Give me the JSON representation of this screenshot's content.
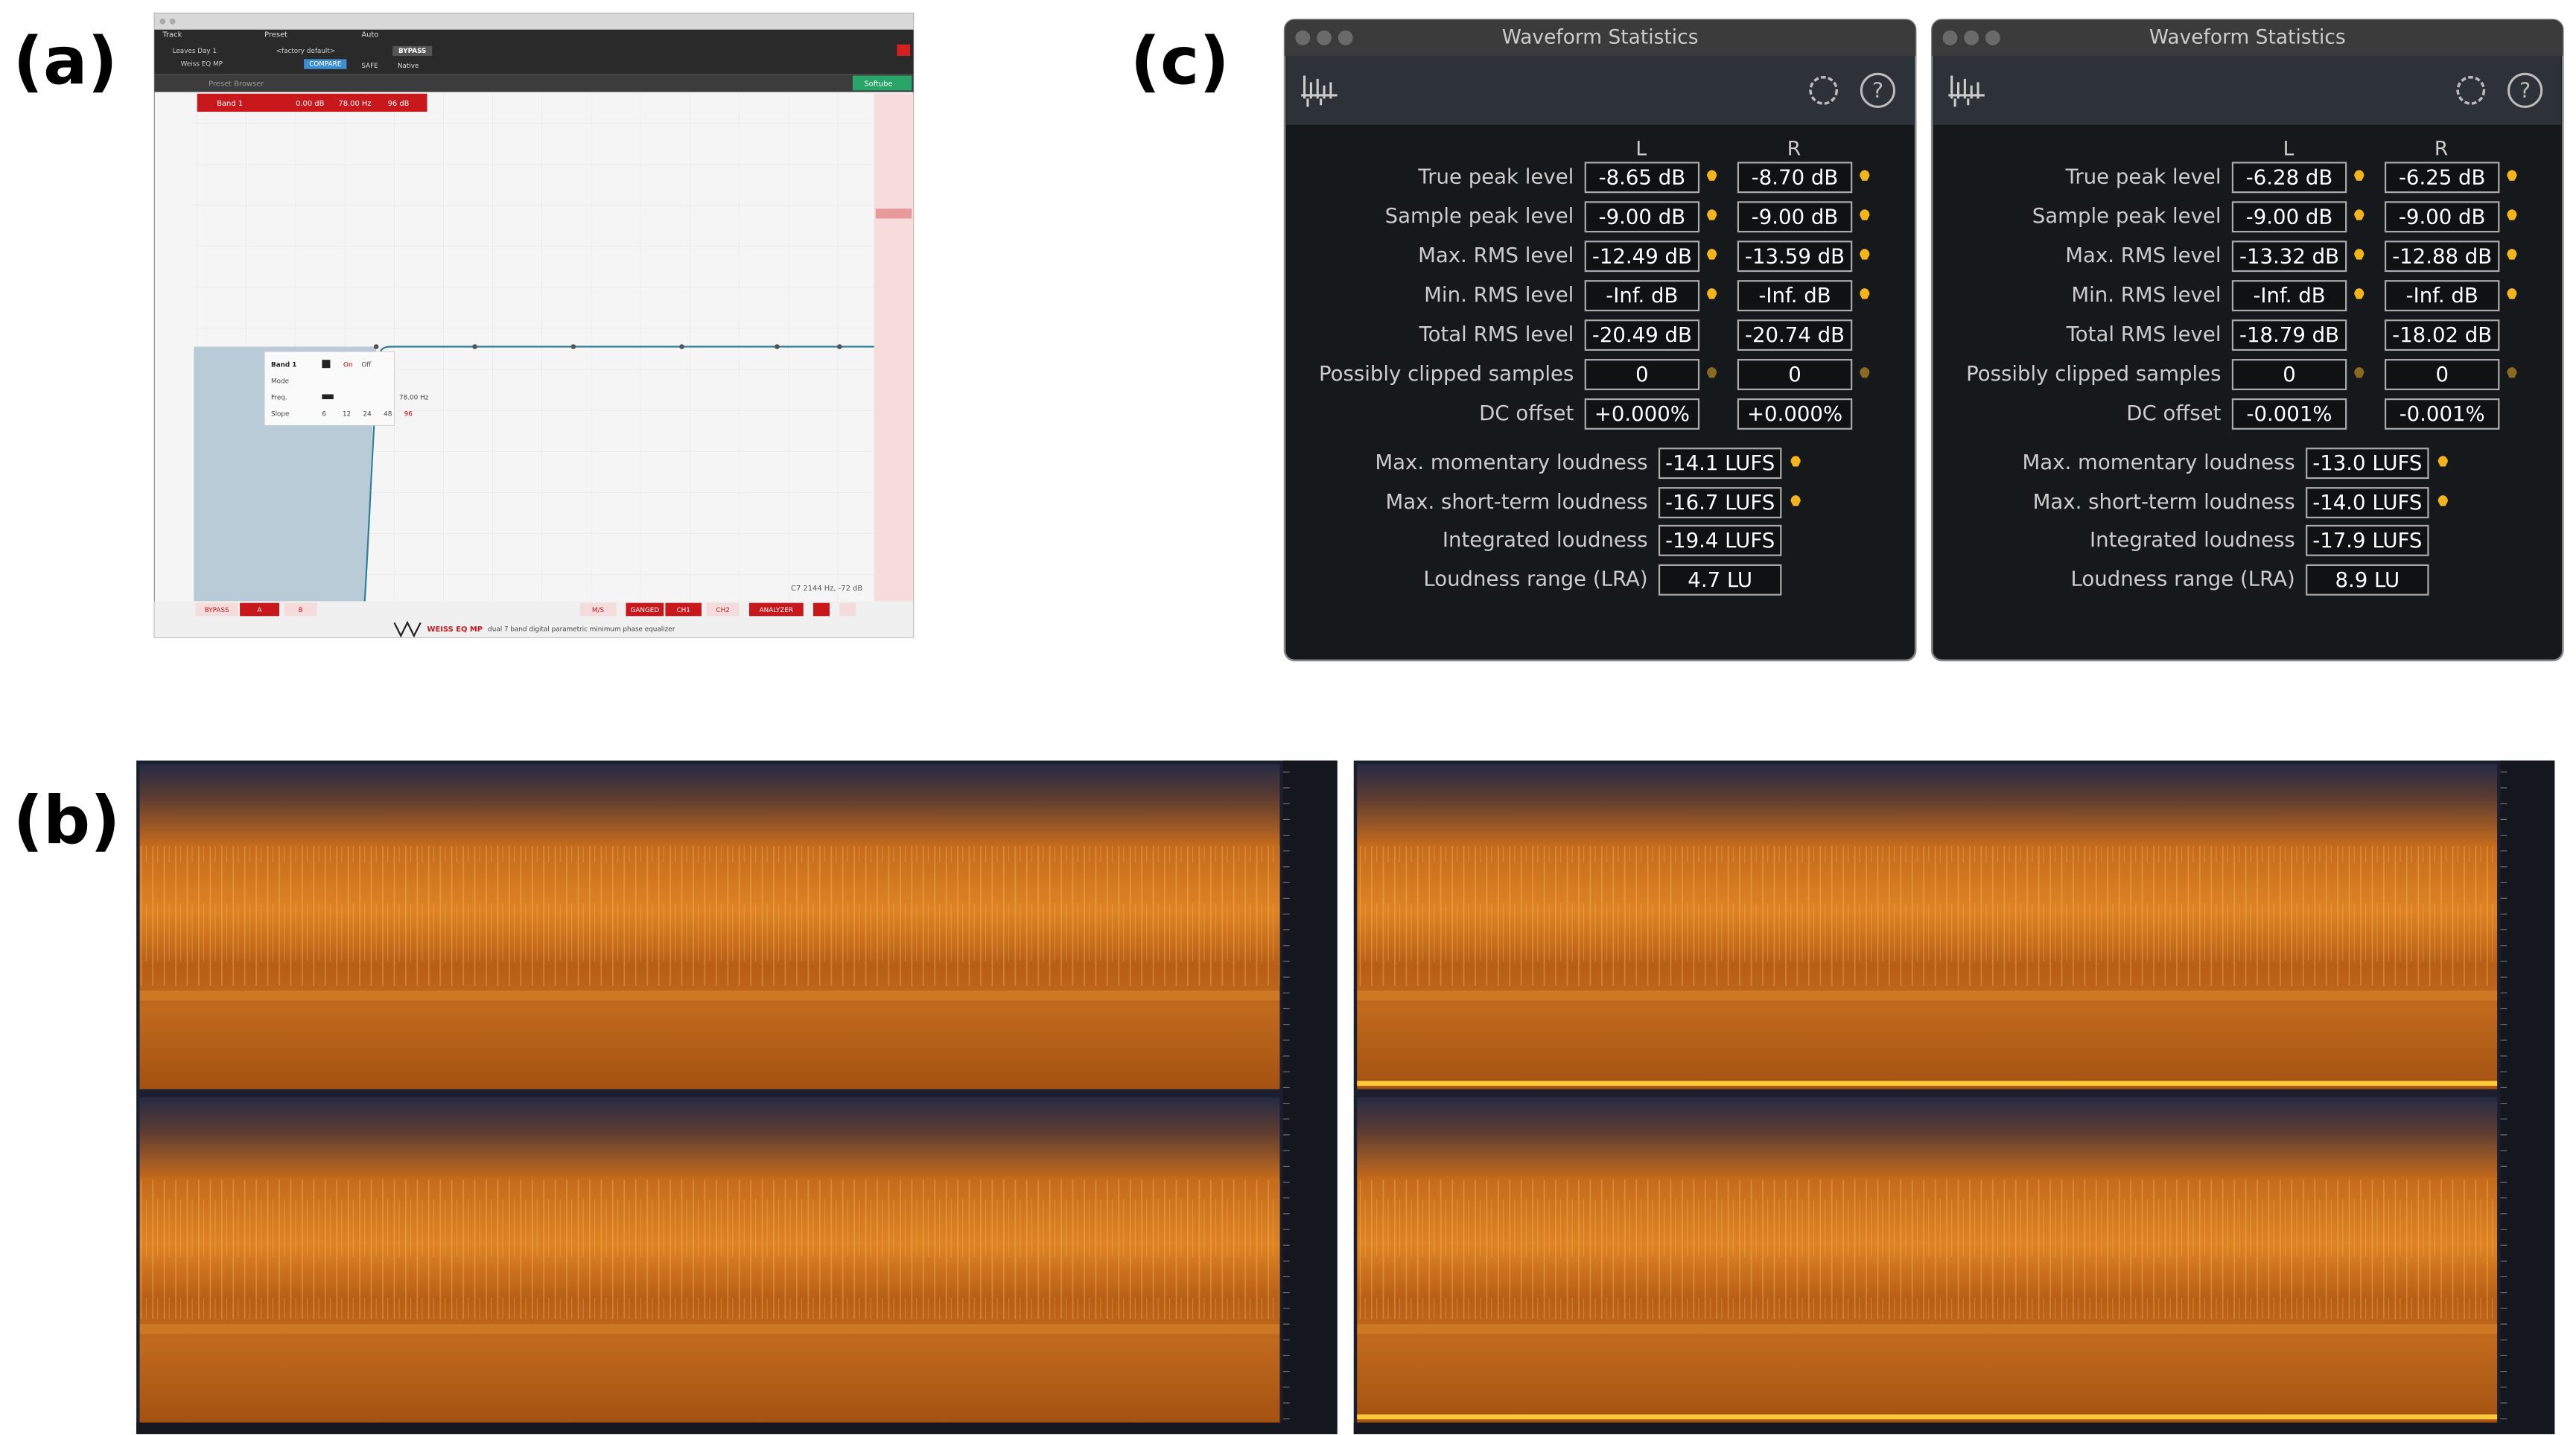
{
  "labels": {
    "a": "(a)",
    "b": "(b)",
    "c": "(c)"
  },
  "eq": {
    "track_label": "Track",
    "preset_label": "Preset",
    "auto_label": "Auto",
    "track": "Leaves Day 1",
    "plugin": "Weiss EQ MP",
    "preset": "<factory default>",
    "compare": "COMPARE",
    "bypass_top": "BYPASS",
    "safe": "SAFE",
    "native": "Native",
    "preset_browser": "Preset Browser",
    "softube": "Softube",
    "band_header": {
      "name": "Band 1",
      "gain": "0.00 dB",
      "freq": "78.00 Hz",
      "slope": "96 dB"
    },
    "popup": {
      "name": "Band 1",
      "on": "On",
      "off": "Off",
      "mode": "Mode",
      "freq_label": "Freq.",
      "freq": "78.00 Hz",
      "slope_label": "Slope",
      "slopes": [
        "6",
        "12",
        "24",
        "48",
        "96"
      ]
    },
    "cursor": "C7 2144 Hz, -72 dB",
    "footer": [
      "BYPASS",
      "A",
      "B",
      "M/S",
      "GANGED",
      "CH1",
      "CH2",
      "ANALYZER"
    ],
    "brand": "WEISS EQ MP",
    "tagline": "dual 7 band digital parametric minimum phase equalizer"
  },
  "stats": [
    {
      "title": "Waveform Statistics",
      "headers": [
        "L",
        "R"
      ],
      "rows": [
        {
          "label": "True peak level",
          "L": "-8.65 dB",
          "R": "-8.70 dB"
        },
        {
          "label": "Sample peak level",
          "L": "-9.00 dB",
          "R": "-9.00 dB"
        },
        {
          "label": "Max. RMS level",
          "L": "-12.49 dB",
          "R": "-13.59 dB"
        },
        {
          "label": "Min. RMS level",
          "L": "-Inf. dB",
          "R": "-Inf. dB"
        },
        {
          "label": "Total RMS level",
          "L": "-20.49 dB",
          "R": "-20.74 dB"
        },
        {
          "label": "Possibly clipped samples",
          "L": "0",
          "R": "0"
        },
        {
          "label": "DC offset",
          "L": "+0.000%",
          "R": "+0.000%"
        }
      ],
      "loudness": [
        {
          "label": "Max. momentary loudness",
          "value": "-14.1 LUFS"
        },
        {
          "label": "Max. short-term loudness",
          "value": "-16.7 LUFS"
        },
        {
          "label": "Integrated loudness",
          "value": "-19.4 LUFS"
        },
        {
          "label": "Loudness range (LRA)",
          "value": "4.7 LU"
        }
      ]
    },
    {
      "title": "Waveform Statistics",
      "headers": [
        "L",
        "R"
      ],
      "rows": [
        {
          "label": "True peak level",
          "L": "-6.28 dB",
          "R": "-6.25 dB"
        },
        {
          "label": "Sample peak level",
          "L": "-9.00 dB",
          "R": "-9.00 dB"
        },
        {
          "label": "Max. RMS level",
          "L": "-13.32 dB",
          "R": "-12.88 dB"
        },
        {
          "label": "Min. RMS level",
          "L": "-Inf. dB",
          "R": "-Inf. dB"
        },
        {
          "label": "Total RMS level",
          "L": "-18.79 dB",
          "R": "-18.02 dB"
        },
        {
          "label": "Possibly clipped samples",
          "L": "0",
          "R": "0"
        },
        {
          "label": "DC offset",
          "L": "-0.001%",
          "R": "-0.001%"
        }
      ],
      "loudness": [
        {
          "label": "Max. momentary loudness",
          "value": "-13.0 LUFS"
        },
        {
          "label": "Max. short-term loudness",
          "value": "-14.0 LUFS"
        },
        {
          "label": "Integrated loudness",
          "value": "-17.9 LUFS"
        },
        {
          "label": "Loudness range (LRA)",
          "value": "8.9 LU"
        }
      ]
    }
  ]
}
